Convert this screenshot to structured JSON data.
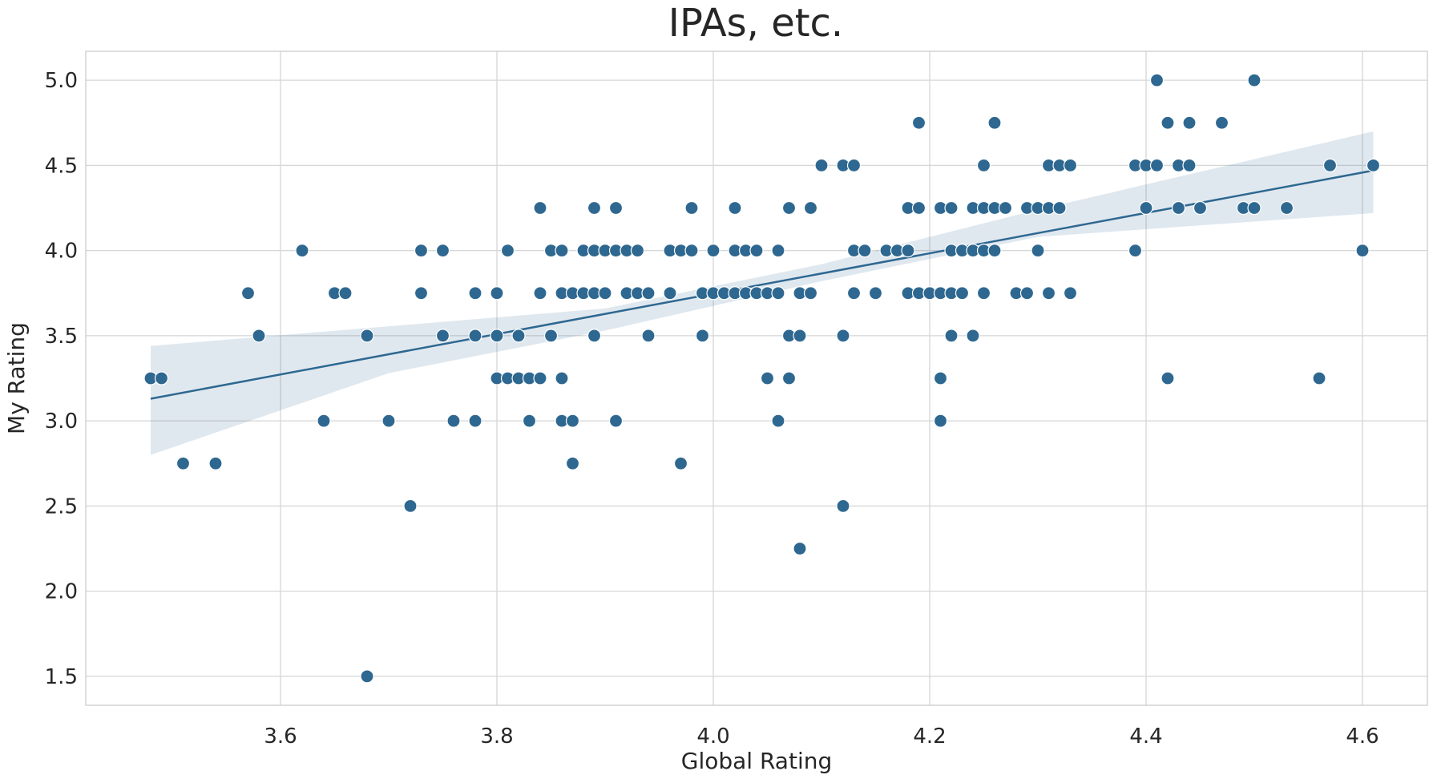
{
  "chart_data": {
    "type": "scatter",
    "title": "IPAs, etc.",
    "xlabel": "Global Rating",
    "ylabel": "My Rating",
    "xlim": [
      3.42,
      4.66
    ],
    "ylim": [
      1.33,
      5.17
    ],
    "xticks": [
      3.6,
      3.8,
      4.0,
      4.2,
      4.4,
      4.6
    ],
    "yticks": [
      1.5,
      2.0,
      2.5,
      3.0,
      3.5,
      4.0,
      4.5,
      5.0
    ],
    "xtick_labels": [
      "3.6",
      "3.8",
      "4.0",
      "4.2",
      "4.4",
      "4.6"
    ],
    "ytick_labels": [
      "1.5",
      "2.0",
      "2.5",
      "3.0",
      "3.5",
      "4.0",
      "4.5",
      "5.0"
    ],
    "grid": true,
    "point_color": "#2e6891",
    "line_color": "#2e6891",
    "ci_color": "#2e6891",
    "regression": {
      "x_start": 3.48,
      "y_start": 3.13,
      "x_end": 4.61,
      "y_end": 4.47,
      "ci_upper": [
        [
          3.48,
          3.44
        ],
        [
          3.9,
          3.66
        ],
        [
          4.1,
          3.92
        ],
        [
          4.3,
          4.24
        ],
        [
          4.61,
          4.7
        ]
      ],
      "ci_lower": [
        [
          3.48,
          2.8
        ],
        [
          3.7,
          3.28
        ],
        [
          3.9,
          3.53
        ],
        [
          4.1,
          3.82
        ],
        [
          4.3,
          4.08
        ],
        [
          4.61,
          4.22
        ]
      ]
    },
    "points": [
      [
        3.48,
        3.25
      ],
      [
        3.49,
        3.25
      ],
      [
        3.51,
        2.75
      ],
      [
        3.54,
        2.75
      ],
      [
        3.57,
        3.75
      ],
      [
        3.58,
        3.5
      ],
      [
        3.62,
        4.0
      ],
      [
        3.64,
        3.0
      ],
      [
        3.65,
        3.75
      ],
      [
        3.66,
        3.75
      ],
      [
        3.68,
        3.5
      ],
      [
        3.68,
        1.5
      ],
      [
        3.7,
        3.0
      ],
      [
        3.72,
        2.5
      ],
      [
        3.73,
        4.0
      ],
      [
        3.73,
        3.75
      ],
      [
        3.75,
        4.0
      ],
      [
        3.75,
        3.5
      ],
      [
        3.76,
        3.0
      ],
      [
        3.78,
        3.75
      ],
      [
        3.78,
        3.5
      ],
      [
        3.78,
        3.0
      ],
      [
        3.8,
        3.75
      ],
      [
        3.8,
        3.5
      ],
      [
        3.8,
        3.25
      ],
      [
        3.81,
        4.0
      ],
      [
        3.81,
        3.25
      ],
      [
        3.82,
        3.5
      ],
      [
        3.82,
        3.25
      ],
      [
        3.83,
        3.25
      ],
      [
        3.83,
        3.0
      ],
      [
        3.84,
        4.25
      ],
      [
        3.84,
        3.75
      ],
      [
        3.84,
        3.25
      ],
      [
        3.85,
        4.0
      ],
      [
        3.85,
        3.5
      ],
      [
        3.86,
        4.0
      ],
      [
        3.86,
        3.75
      ],
      [
        3.86,
        3.25
      ],
      [
        3.86,
        3.0
      ],
      [
        3.87,
        3.75
      ],
      [
        3.87,
        3.0
      ],
      [
        3.87,
        2.75
      ],
      [
        3.88,
        4.0
      ],
      [
        3.88,
        3.75
      ],
      [
        3.89,
        4.25
      ],
      [
        3.89,
        4.0
      ],
      [
        3.89,
        3.75
      ],
      [
        3.89,
        3.5
      ],
      [
        3.9,
        4.0
      ],
      [
        3.9,
        3.75
      ],
      [
        3.91,
        4.25
      ],
      [
        3.91,
        4.0
      ],
      [
        3.91,
        3.0
      ],
      [
        3.92,
        4.0
      ],
      [
        3.92,
        3.75
      ],
      [
        3.93,
        4.0
      ],
      [
        3.93,
        3.75
      ],
      [
        3.94,
        3.75
      ],
      [
        3.94,
        3.5
      ],
      [
        3.96,
        4.0
      ],
      [
        3.96,
        3.75
      ],
      [
        3.97,
        4.0
      ],
      [
        3.97,
        2.75
      ],
      [
        3.98,
        4.25
      ],
      [
        3.98,
        4.0
      ],
      [
        3.99,
        3.75
      ],
      [
        3.99,
        3.5
      ],
      [
        4.0,
        4.0
      ],
      [
        4.0,
        3.75
      ],
      [
        4.01,
        3.75
      ],
      [
        4.02,
        4.25
      ],
      [
        4.02,
        4.0
      ],
      [
        4.02,
        3.75
      ],
      [
        4.03,
        4.0
      ],
      [
        4.03,
        3.75
      ],
      [
        4.04,
        4.0
      ],
      [
        4.04,
        3.75
      ],
      [
        4.05,
        3.75
      ],
      [
        4.05,
        3.25
      ],
      [
        4.06,
        4.0
      ],
      [
        4.06,
        3.75
      ],
      [
        4.06,
        3.0
      ],
      [
        4.07,
        4.25
      ],
      [
        4.07,
        3.5
      ],
      [
        4.07,
        3.25
      ],
      [
        4.08,
        3.75
      ],
      [
        4.08,
        3.5
      ],
      [
        4.08,
        2.25
      ],
      [
        4.09,
        4.25
      ],
      [
        4.09,
        3.75
      ],
      [
        4.1,
        4.5
      ],
      [
        4.12,
        4.5
      ],
      [
        4.12,
        3.5
      ],
      [
        4.12,
        2.5
      ],
      [
        4.13,
        4.5
      ],
      [
        4.13,
        4.0
      ],
      [
        4.13,
        3.75
      ],
      [
        4.14,
        4.0
      ],
      [
        4.15,
        3.75
      ],
      [
        4.16,
        4.0
      ],
      [
        4.17,
        4.0
      ],
      [
        4.18,
        4.25
      ],
      [
        4.18,
        4.0
      ],
      [
        4.18,
        3.75
      ],
      [
        4.19,
        4.75
      ],
      [
        4.19,
        4.25
      ],
      [
        4.19,
        3.75
      ],
      [
        4.2,
        3.75
      ],
      [
        4.21,
        4.25
      ],
      [
        4.21,
        3.75
      ],
      [
        4.21,
        3.25
      ],
      [
        4.21,
        3.0
      ],
      [
        4.22,
        4.25
      ],
      [
        4.22,
        4.0
      ],
      [
        4.22,
        3.75
      ],
      [
        4.22,
        3.5
      ],
      [
        4.23,
        4.0
      ],
      [
        4.23,
        3.75
      ],
      [
        4.24,
        4.25
      ],
      [
        4.24,
        4.0
      ],
      [
        4.24,
        3.5
      ],
      [
        4.25,
        4.5
      ],
      [
        4.25,
        4.25
      ],
      [
        4.25,
        4.0
      ],
      [
        4.25,
        3.75
      ],
      [
        4.26,
        4.75
      ],
      [
        4.26,
        4.25
      ],
      [
        4.26,
        4.0
      ],
      [
        4.27,
        4.25
      ],
      [
        4.28,
        3.75
      ],
      [
        4.29,
        4.25
      ],
      [
        4.29,
        3.75
      ],
      [
        4.3,
        4.25
      ],
      [
        4.3,
        4.0
      ],
      [
        4.31,
        4.5
      ],
      [
        4.31,
        4.25
      ],
      [
        4.31,
        3.75
      ],
      [
        4.32,
        4.5
      ],
      [
        4.32,
        4.25
      ],
      [
        4.33,
        4.5
      ],
      [
        4.33,
        3.75
      ],
      [
        4.39,
        4.5
      ],
      [
        4.39,
        4.0
      ],
      [
        4.4,
        4.5
      ],
      [
        4.4,
        4.25
      ],
      [
        4.41,
        5.0
      ],
      [
        4.41,
        4.5
      ],
      [
        4.42,
        4.75
      ],
      [
        4.42,
        3.25
      ],
      [
        4.43,
        4.5
      ],
      [
        4.43,
        4.25
      ],
      [
        4.44,
        4.75
      ],
      [
        4.44,
        4.5
      ],
      [
        4.45,
        4.25
      ],
      [
        4.47,
        4.75
      ],
      [
        4.49,
        4.25
      ],
      [
        4.5,
        5.0
      ],
      [
        4.5,
        4.25
      ],
      [
        4.53,
        4.25
      ],
      [
        4.56,
        3.25
      ],
      [
        4.57,
        4.5
      ],
      [
        4.6,
        4.0
      ],
      [
        4.61,
        4.5
      ]
    ]
  }
}
